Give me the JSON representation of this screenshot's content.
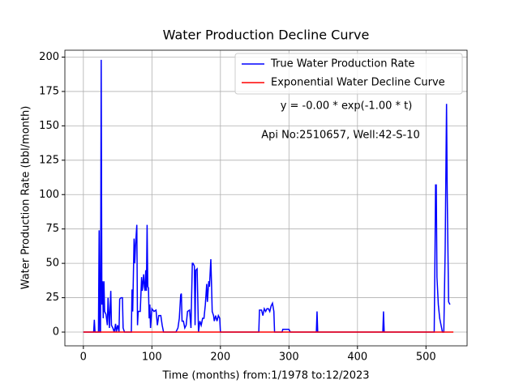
{
  "chart_data": {
    "type": "line",
    "title": "Water Production Decline Curve",
    "xlabel": "Time (months) from:1/1978 to:12/2023",
    "ylabel": "Water Production Rate (bbl/month)",
    "annotations": [
      "y = -0.00 * exp(-1.00 * t)",
      "Api No:2510657, Well:42-S-10"
    ],
    "xlim": [
      -27,
      560
    ],
    "ylim": [
      -10,
      205
    ],
    "xticks": [
      0,
      100,
      200,
      300,
      400,
      500
    ],
    "yticks": [
      0,
      25,
      50,
      75,
      100,
      125,
      150,
      175,
      200
    ],
    "grid": true,
    "legend": "upper right",
    "series": [
      {
        "name": "True Water Production Rate",
        "color": "#0000ff",
        "x": [
          0,
          15,
          16,
          17,
          22,
          23,
          24,
          25,
          26,
          27,
          28,
          29,
          30,
          31,
          33,
          35,
          36,
          37,
          38,
          40,
          41,
          43,
          45,
          47,
          48,
          50,
          52,
          53,
          55,
          57,
          58,
          60,
          70,
          71,
          72,
          74,
          75,
          76,
          78,
          79,
          80,
          83,
          85,
          86,
          88,
          89,
          90,
          91,
          92,
          93,
          94,
          95,
          96,
          97,
          98,
          100,
          103,
          106,
          108,
          110,
          113,
          115,
          117,
          135,
          138,
          140,
          142,
          143,
          144,
          146,
          148,
          150,
          152,
          155,
          157,
          159,
          160,
          162,
          163,
          164,
          166,
          168,
          170,
          172,
          174,
          176,
          178,
          180,
          181,
          183,
          184,
          186,
          187,
          188,
          190,
          191,
          193,
          195,
          197,
          199,
          200,
          256,
          257,
          260,
          262,
          264,
          266,
          268,
          270,
          272,
          274,
          276,
          278,
          279,
          290,
          291,
          300,
          302,
          340,
          341,
          342,
          437,
          438,
          439,
          512,
          513,
          514,
          515,
          516,
          518,
          520,
          522,
          524,
          526,
          528,
          530,
          531,
          533,
          535
        ],
        "values": [
          0,
          0,
          9,
          0,
          0,
          74,
          0,
          0,
          198,
          20,
          37,
          10,
          37,
          15,
          13,
          5,
          25,
          15,
          3,
          30,
          5,
          3,
          0,
          6,
          0,
          5,
          0,
          24,
          25,
          25,
          3,
          0,
          0,
          31,
          15,
          68,
          50,
          62,
          78,
          5,
          15,
          15,
          40,
          30,
          42,
          33,
          30,
          45,
          30,
          78,
          33,
          32,
          10,
          20,
          3,
          17,
          15,
          16,
          5,
          12,
          12,
          5,
          0,
          0,
          3,
          10,
          27,
          28,
          8,
          8,
          3,
          5,
          15,
          16,
          3,
          50,
          50,
          48,
          5,
          45,
          46,
          0,
          8,
          5,
          10,
          10,
          20,
          35,
          22,
          37,
          33,
          53,
          35,
          15,
          12,
          8,
          12,
          8,
          12,
          10,
          0,
          0,
          16,
          16,
          12,
          17,
          15,
          17,
          17,
          15,
          19,
          21,
          15,
          0,
          0,
          2,
          2,
          0,
          0,
          15,
          0,
          0,
          15,
          0,
          0,
          50,
          107,
          107,
          40,
          20,
          10,
          5,
          0,
          0,
          60,
          166,
          100,
          22,
          20
        ]
      },
      {
        "name": "Exponential Water Decline Curve",
        "color": "#ff0000",
        "x": [
          0,
          540
        ],
        "values": [
          0,
          0
        ]
      }
    ]
  }
}
